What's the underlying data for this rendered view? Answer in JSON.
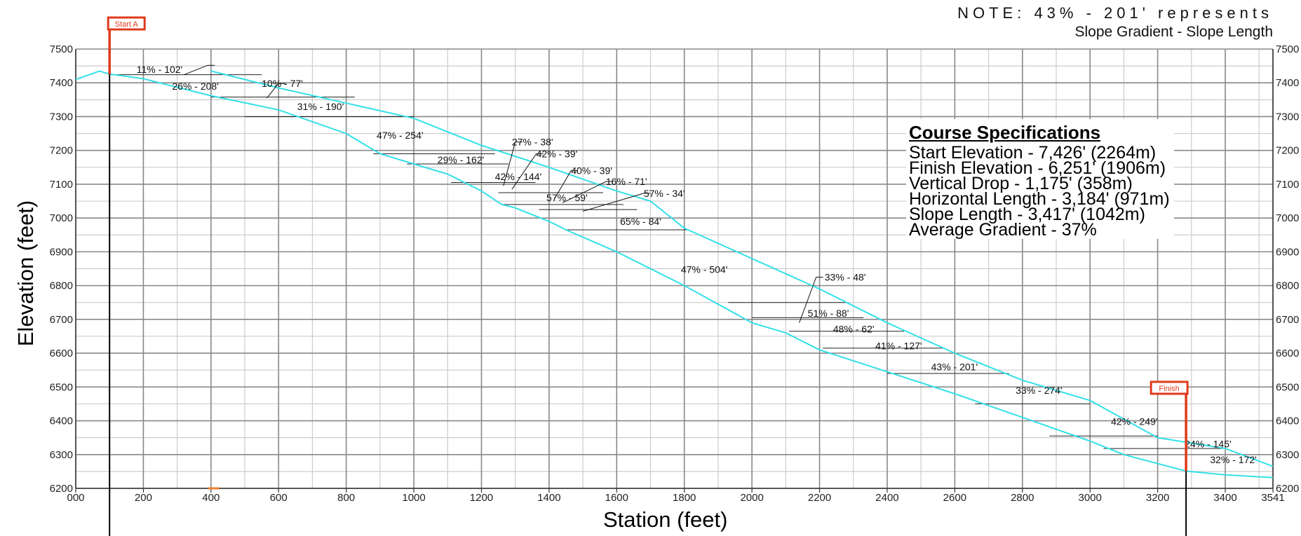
{
  "note": {
    "line1": "NOTE: 43% - 201' represents",
    "line2": "Slope Gradient - Slope Length"
  },
  "specs": {
    "title": "Course Specifications",
    "rows": [
      "Start Elevation - 7,426'  (2264m)",
      "Finish Elevation - 6,251'  (1906m)",
      "Vertical Drop -  1,175'  (358m)",
      "Horizontal Length -  3,184'  (971m)",
      "Slope Length - 3,417'  (1042m)",
      "Average Gradient - 37%"
    ]
  },
  "colors": {
    "profile": "#33e0e8",
    "marker": "#e03a1c",
    "grid_major": "#888888",
    "grid_minor": "#cccccc"
  },
  "chart_data": {
    "type": "line",
    "xlabel": "Station (feet)",
    "ylabel": "Elevation (feet)",
    "xlim": [
      0,
      3541
    ],
    "ylim": [
      6200,
      7500
    ],
    "x_ticks": [
      "000",
      "200",
      "400",
      "600",
      "800",
      "1000",
      "1200",
      "1400",
      "1600",
      "1800",
      "2000",
      "2200",
      "2400",
      "2600",
      "2800",
      "3000",
      "3200",
      "3400",
      "3541"
    ],
    "x_tick_values": [
      0,
      200,
      400,
      600,
      800,
      1000,
      1200,
      1400,
      1600,
      1800,
      2000,
      2200,
      2400,
      2600,
      2800,
      3000,
      3200,
      3400,
      3541
    ],
    "y_ticks": [
      6200,
      6300,
      6400,
      6500,
      6600,
      6700,
      6800,
      6900,
      7000,
      7100,
      7200,
      7300,
      7400,
      7500
    ],
    "grid": true,
    "markers": [
      {
        "label": "Start A",
        "x": 100,
        "elevation": 7426
      },
      {
        "label": "Finish",
        "x": 3284,
        "elevation": 6251
      }
    ],
    "series": [
      {
        "points": [
          [
            0,
            7410
          ],
          [
            70,
            7435
          ],
          [
            100,
            7426
          ],
          [
            200,
            7412
          ],
          [
            400,
            7362
          ],
          [
            600,
            7320
          ],
          [
            800,
            7250
          ],
          [
            900,
            7190
          ],
          [
            1000,
            7160
          ],
          [
            1100,
            7130
          ],
          [
            1200,
            7080
          ],
          [
            1260,
            7040
          ],
          [
            1300,
            7030
          ],
          [
            1400,
            6990
          ],
          [
            1450,
            6965
          ],
          [
            1600,
            6900
          ],
          [
            1800,
            6800
          ],
          [
            2000,
            6690
          ],
          [
            2100,
            6660
          ],
          [
            2200,
            6610
          ],
          [
            2400,
            6545
          ],
          [
            2600,
            6480
          ],
          [
            2800,
            6410
          ],
          [
            3000,
            6340
          ],
          [
            3100,
            6300
          ],
          [
            3284,
            6251
          ],
          [
            3400,
            6240
          ],
          [
            3541,
            6232
          ]
        ]
      },
      {
        "points": [
          [
            400,
            7435
          ],
          [
            600,
            7385
          ],
          [
            800,
            7340
          ],
          [
            1000,
            7295
          ],
          [
            1200,
            7215
          ],
          [
            1400,
            7150
          ],
          [
            1600,
            7080
          ],
          [
            1700,
            7050
          ],
          [
            1800,
            6970
          ],
          [
            2000,
            6880
          ],
          [
            2200,
            6790
          ],
          [
            2400,
            6690
          ],
          [
            2600,
            6600
          ],
          [
            2800,
            6520
          ],
          [
            3000,
            6460
          ],
          [
            3200,
            6350
          ],
          [
            3400,
            6318
          ],
          [
            3541,
            6265
          ]
        ]
      }
    ],
    "segments": [
      {
        "label": "11% - 102'",
        "x": 180,
        "y": 7440,
        "leader": [
          [
            320,
            7424
          ],
          [
            390,
            7452
          ]
        ]
      },
      {
        "label": "26% - 208'",
        "x": 285,
        "y": 7390
      },
      {
        "label": "10% - 77'",
        "x": 550,
        "y": 7398,
        "leader": [
          [
            565,
            7355
          ],
          [
            600,
            7398
          ]
        ]
      },
      {
        "label": "31% - 190'",
        "x": 655,
        "y": 7330
      },
      {
        "label": "47% - 254'",
        "x": 890,
        "y": 7245
      },
      {
        "label": "29% - 162'",
        "x": 1070,
        "y": 7172
      },
      {
        "label": "42% - 144'",
        "x": 1240,
        "y": 7123
      },
      {
        "label": "27% - 38'",
        "x": 1290,
        "y": 7225,
        "leader": [
          [
            1265,
            7095
          ],
          [
            1300,
            7225
          ]
        ]
      },
      {
        "label": "42% - 39'",
        "x": 1362,
        "y": 7190,
        "leader": [
          [
            1290,
            7085
          ],
          [
            1362,
            7190
          ]
        ]
      },
      {
        "label": "40% - 39'",
        "x": 1465,
        "y": 7140,
        "leader": [
          [
            1415,
            7055
          ],
          [
            1465,
            7140
          ]
        ]
      },
      {
        "label": "57% - 59'",
        "x": 1392,
        "y": 7060
      },
      {
        "label": "16% - 71'",
        "x": 1568,
        "y": 7108,
        "leader": [
          [
            1440,
            7045
          ],
          [
            1568,
            7108
          ]
        ]
      },
      {
        "label": "57% - 34'",
        "x": 1680,
        "y": 7073,
        "leader": [
          [
            1500,
            7020
          ],
          [
            1680,
            7073
          ]
        ]
      },
      {
        "label": "65% - 84'",
        "x": 1610,
        "y": 6990
      },
      {
        "label": "47% - 504'",
        "x": 1790,
        "y": 6848
      },
      {
        "label": "33% - 48'",
        "x": 2215,
        "y": 6825,
        "leader": [
          [
            2140,
            6690
          ],
          [
            2190,
            6825
          ]
        ]
      },
      {
        "label": "51% - 88'",
        "x": 2165,
        "y": 6718
      },
      {
        "label": "48% - 62'",
        "x": 2240,
        "y": 6672
      },
      {
        "label": "41% - 127'",
        "x": 2365,
        "y": 6622
      },
      {
        "label": "43% - 201'",
        "x": 2530,
        "y": 6560
      },
      {
        "label": "33% - 274'",
        "x": 2780,
        "y": 6490
      },
      {
        "label": "42% - 249'",
        "x": 3062,
        "y": 6398
      },
      {
        "label": "24% - 145'",
        "x": 3280,
        "y": 6332
      },
      {
        "label": "32% - 172'",
        "x": 3355,
        "y": 6285
      }
    ],
    "breaks": [
      [
        100,
        550,
        7424
      ],
      [
        400,
        825,
        7358
      ],
      [
        500,
        1000,
        7300
      ],
      [
        880,
        1240,
        7190
      ],
      [
        980,
        1280,
        7160
      ],
      [
        1110,
        1360,
        7105
      ],
      [
        1250,
        1560,
        7075
      ],
      [
        1260,
        1620,
        7040
      ],
      [
        1370,
        1660,
        7025
      ],
      [
        1450,
        1810,
        6965
      ],
      [
        1930,
        2280,
        6750
      ],
      [
        2000,
        2330,
        6705
      ],
      [
        2110,
        2450,
        6665
      ],
      [
        2210,
        2570,
        6615
      ],
      [
        2400,
        2760,
        6540
      ],
      [
        2660,
        3000,
        6450
      ],
      [
        2880,
        3200,
        6355
      ],
      [
        3040,
        3390,
        6318
      ]
    ]
  }
}
